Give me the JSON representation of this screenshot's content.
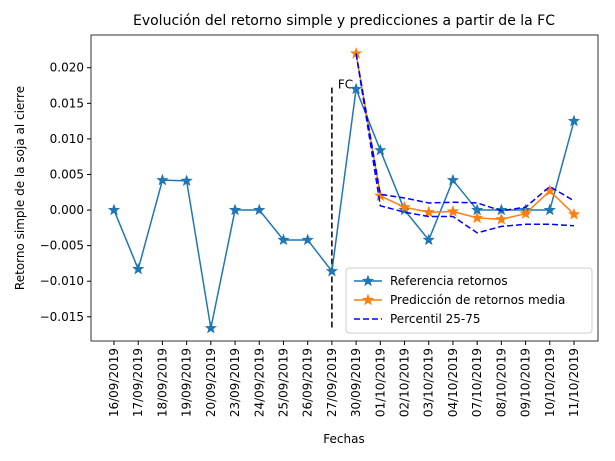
{
  "chart_data": {
    "type": "line",
    "title": "Evolución del retorno simple y predicciones a partir de la FC",
    "xlabel": "Fechas",
    "ylabel": "Retorno simple de la soja al cierre",
    "categories": [
      "16/09/2019",
      "17/09/2019",
      "18/09/2019",
      "19/09/2019",
      "20/09/2019",
      "23/09/2019",
      "24/09/2019",
      "25/09/2019",
      "26/09/2019",
      "27/09/2019",
      "30/09/2019",
      "01/10/2019",
      "02/10/2019",
      "03/10/2019",
      "04/10/2019",
      "07/10/2019",
      "08/10/2019",
      "09/10/2019",
      "10/10/2019",
      "11/10/2019"
    ],
    "ylim": [
      -0.0184,
      0.0246
    ],
    "yticks": [
      {
        "value": -0.015,
        "label": "−0.015"
      },
      {
        "value": -0.01,
        "label": "−0.010"
      },
      {
        "value": -0.005,
        "label": "−0.005"
      },
      {
        "value": 0,
        "label": "0.000"
      },
      {
        "value": 0.005,
        "label": "0.005"
      },
      {
        "value": 0.01,
        "label": "0.010"
      },
      {
        "value": 0.015,
        "label": "0.015"
      },
      {
        "value": 0.02,
        "label": "0.020"
      }
    ],
    "legend": "lower right",
    "series": [
      {
        "name": "Referencia retornos",
        "color": "#1f77b4",
        "marker": "star",
        "style": "solid",
        "values": [
          0,
          -0.0083,
          0.0042,
          0.0041,
          -0.0166,
          0,
          0,
          -0.0042,
          -0.0042,
          -0.0086,
          0.017,
          0.0084,
          0,
          -0.0042,
          0.0042,
          0,
          0,
          0,
          0,
          0.0125
        ]
      },
      {
        "name": "Predicción de retornos media",
        "color": "#ff7f0e",
        "marker": "star",
        "style": "solid",
        "values": [
          null,
          null,
          null,
          null,
          null,
          null,
          null,
          null,
          null,
          null,
          0.022,
          0.002,
          0.0004,
          -0.0003,
          -0.0002,
          -0.0011,
          -0.0013,
          -0.0005,
          0.0027,
          -0.0006
        ]
      },
      {
        "name": "Percentil 25-75",
        "color": "#0000ff",
        "marker": "none",
        "style": "dashed",
        "values": [
          null,
          null,
          null,
          null,
          null,
          null,
          null,
          null,
          null,
          null,
          0.022,
          0.0006,
          -0.0003,
          -0.0009,
          -0.0009,
          -0.0032,
          -0.0023,
          -0.002,
          -0.002,
          -0.0022
        ],
        "upper_values": [
          null,
          null,
          null,
          null,
          null,
          null,
          null,
          null,
          null,
          null,
          0.022,
          0.0022,
          0.0017,
          0.001,
          0.0011,
          0.001,
          -0.0001,
          0.0004,
          0.0033,
          0.0013
        ]
      }
    ],
    "fc_line": {
      "x": "27/09/2019",
      "ymin": -0.0165,
      "ymax": 0.0172,
      "label": "FC",
      "color": "#000000"
    }
  }
}
